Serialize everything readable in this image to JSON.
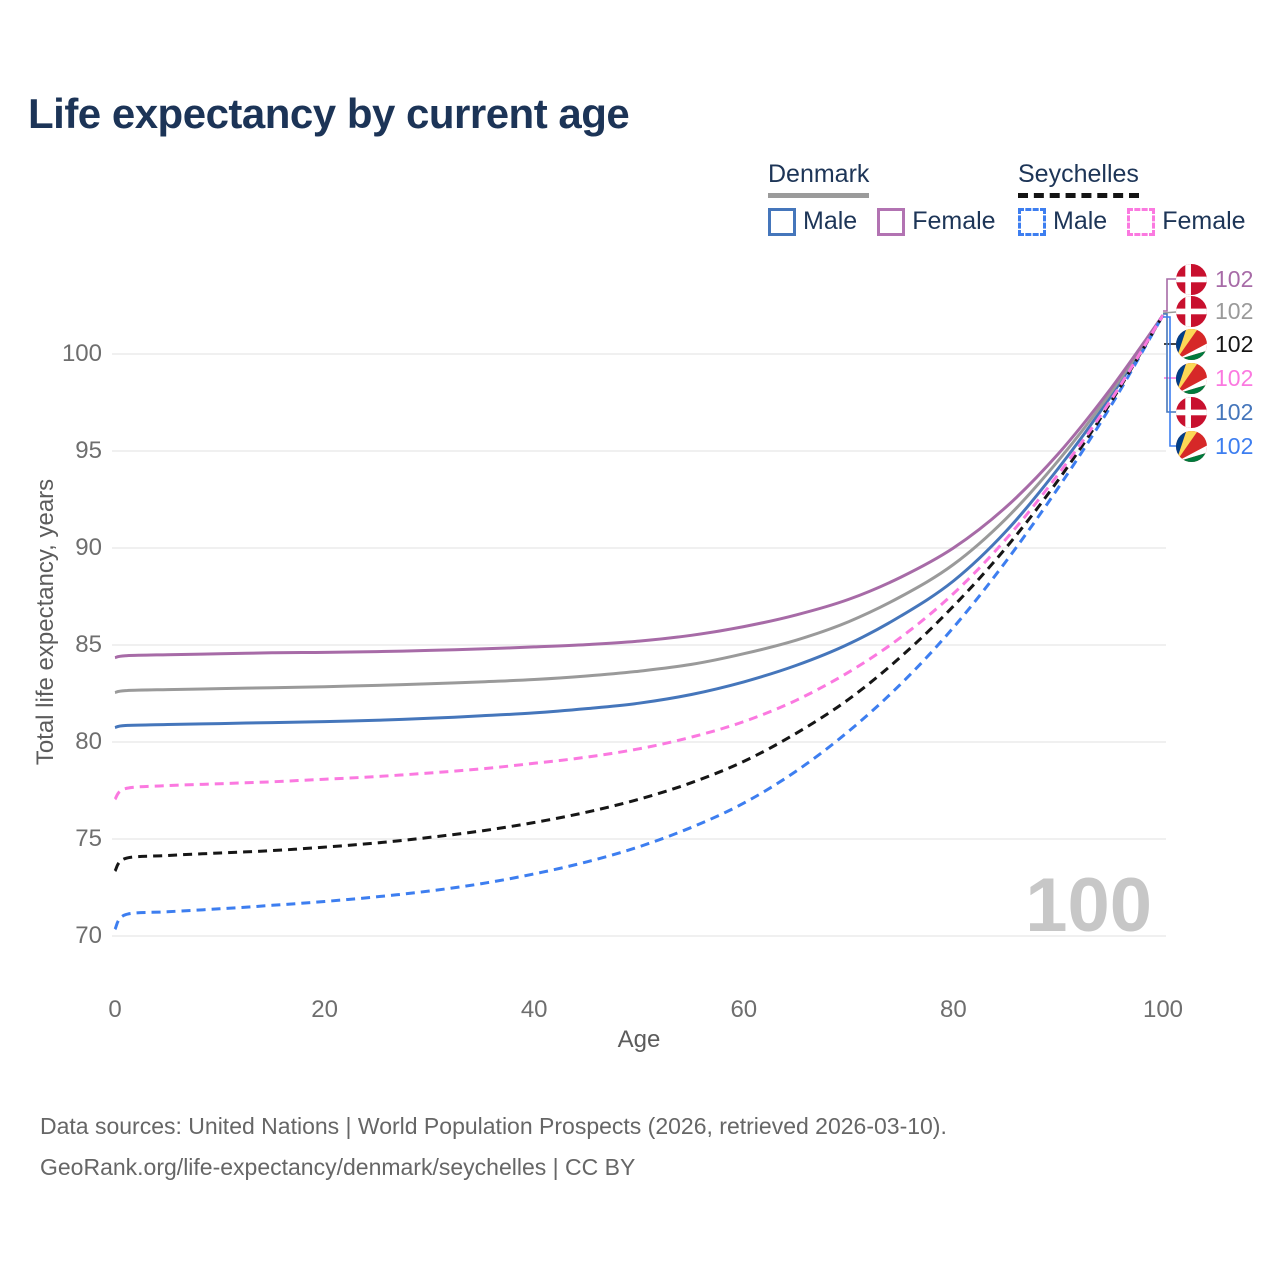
{
  "title": "Life expectancy by current age",
  "watermark": "100",
  "footer": {
    "line1": "Data sources: United Nations | World Population Prospects (2026, retrieved 2026-03-10).",
    "line2": "GeoRank.org/life-expectancy/denmark/seychelles | CC BY"
  },
  "legend": {
    "groups": [
      {
        "name": "Denmark",
        "style": "solid",
        "underline_color": "#9b9b9b",
        "items": [
          {
            "label": "Male",
            "color": "#4576bb"
          },
          {
            "label": "Female",
            "color": "#b273b2"
          }
        ]
      },
      {
        "name": "Seychelles",
        "style": "dashed",
        "underline_color": "#141414",
        "items": [
          {
            "label": "Male",
            "color": "#3d7ef0"
          },
          {
            "label": "Female",
            "color": "#fb79e0"
          }
        ]
      }
    ]
  },
  "chart_data": {
    "type": "line",
    "title": "Life expectancy by current age",
    "xlabel": "Age",
    "ylabel": "Total life expectancy, years",
    "xlim": [
      0,
      100
    ],
    "ylim": [
      70,
      102
    ],
    "x_ticks": [
      0,
      20,
      40,
      60,
      80,
      100
    ],
    "y_ticks": [
      70,
      75,
      80,
      85,
      90,
      95,
      100
    ],
    "grid": "horizontal",
    "legend_position": "top-right",
    "x": [
      0,
      1,
      5,
      10,
      15,
      20,
      25,
      30,
      35,
      40,
      45,
      50,
      55,
      60,
      65,
      70,
      75,
      80,
      85,
      90,
      95,
      100
    ],
    "series": [
      {
        "key": "denmark-male",
        "name": "Denmark Male",
        "country": "Denmark",
        "sex": "Male",
        "style": "solid",
        "color": "#4576bb",
        "flag": "dk",
        "end_label": "102",
        "values": [
          80.75,
          80.85,
          80.9,
          80.95,
          81.0,
          81.05,
          81.12,
          81.22,
          81.35,
          81.5,
          81.72,
          82.0,
          82.45,
          83.1,
          83.95,
          85.05,
          86.5,
          88.3,
          90.85,
          94.1,
          97.8,
          102
        ]
      },
      {
        "key": "denmark-total",
        "name": "Denmark Both sexes",
        "country": "Denmark",
        "sex": "Both",
        "style": "solid",
        "color": "#9a9a9a",
        "flag": "dk",
        "end_label": "102",
        "values": [
          82.55,
          82.65,
          82.7,
          82.75,
          82.8,
          82.85,
          82.92,
          83.0,
          83.1,
          83.22,
          83.4,
          83.65,
          84.0,
          84.55,
          85.25,
          86.2,
          87.5,
          89.15,
          91.5,
          94.5,
          98.0,
          102
        ]
      },
      {
        "key": "denmark-female",
        "name": "Denmark Female",
        "country": "Denmark",
        "sex": "Female",
        "style": "solid",
        "color": "#a76ba7",
        "flag": "dk",
        "end_label": "102",
        "values": [
          84.35,
          84.45,
          84.5,
          84.55,
          84.6,
          84.62,
          84.66,
          84.72,
          84.8,
          84.9,
          85.02,
          85.2,
          85.5,
          85.95,
          86.55,
          87.35,
          88.5,
          90.0,
          92.1,
          94.85,
          98.2,
          102
        ]
      },
      {
        "key": "seychelles-male",
        "name": "Seychelles Male",
        "country": "Seychelles",
        "sex": "Male",
        "style": "dashed",
        "color": "#3d7ef0",
        "flag": "sc",
        "end_label": "102",
        "values": [
          70.35,
          71.1,
          71.25,
          71.4,
          71.58,
          71.78,
          72.02,
          72.32,
          72.7,
          73.2,
          73.82,
          74.6,
          75.6,
          76.85,
          78.5,
          80.55,
          83.0,
          85.9,
          89.3,
          93.1,
          97.3,
          102
        ]
      },
      {
        "key": "seychelles-total",
        "name": "Seychelles Both sexes",
        "country": "Seychelles",
        "sex": "Both",
        "style": "dashed",
        "color": "#161616",
        "flag": "sc",
        "end_label": "102",
        "values": [
          73.35,
          74.0,
          74.15,
          74.28,
          74.4,
          74.58,
          74.8,
          75.08,
          75.42,
          75.85,
          76.38,
          77.05,
          77.9,
          79.0,
          80.45,
          82.2,
          84.4,
          87.0,
          90.0,
          93.5,
          97.5,
          102
        ]
      },
      {
        "key": "seychelles-female",
        "name": "Seychelles Female",
        "country": "Seychelles",
        "sex": "Female",
        "style": "dashed",
        "color": "#fb79e0",
        "flag": "sc",
        "end_label": "102",
        "values": [
          77.05,
          77.6,
          77.75,
          77.85,
          77.95,
          78.08,
          78.22,
          78.4,
          78.62,
          78.9,
          79.22,
          79.65,
          80.25,
          81.05,
          82.15,
          83.6,
          85.4,
          87.65,
          90.45,
          93.8,
          97.6,
          102
        ]
      }
    ],
    "end_label_rows": [
      "denmark-female",
      "denmark-total",
      "seychelles-total",
      "seychelles-female",
      "denmark-male",
      "seychelles-male"
    ]
  }
}
